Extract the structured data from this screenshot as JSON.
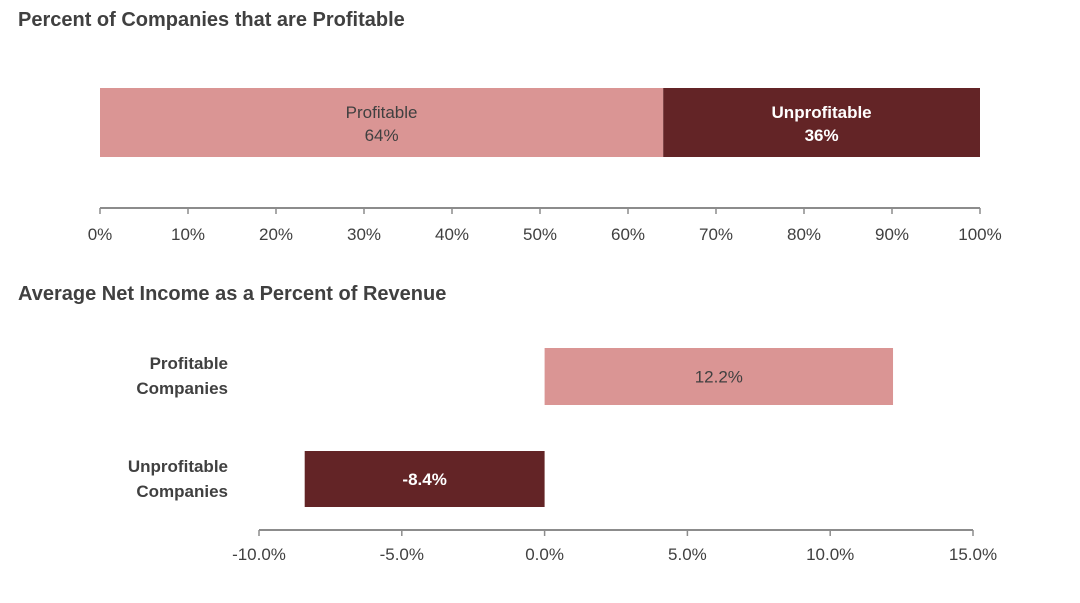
{
  "colors": {
    "profitable": "#DA9594",
    "unprofitable": "#632426",
    "text": "#404040",
    "axis": "#8c8c8c"
  },
  "chart_data": [
    {
      "type": "bar",
      "orientation": "horizontal-stacked",
      "title": "Percent of Companies that are Profitable",
      "series": [
        {
          "name": "Profitable",
          "values": [
            64
          ],
          "label": "64%"
        },
        {
          "name": "Unprofitable",
          "values": [
            36
          ],
          "label": "36%"
        }
      ],
      "xlim": [
        0,
        100
      ],
      "xticks": [
        "0%",
        "10%",
        "20%",
        "30%",
        "40%",
        "50%",
        "60%",
        "70%",
        "80%",
        "90%",
        "100%"
      ],
      "grid": false
    },
    {
      "type": "bar",
      "orientation": "horizontal",
      "title": "Average Net Income as a Percent of Revenue",
      "categories": [
        "Profitable Companies",
        "Unprofitable Companies"
      ],
      "category_lines": [
        [
          "Profitable",
          "Companies"
        ],
        [
          "Unprofitable",
          "Companies"
        ]
      ],
      "values": [
        12.2,
        -8.4
      ],
      "labels": [
        "12.2%",
        "-8.4%"
      ],
      "xlim": [
        -10,
        15
      ],
      "xticks": [
        "-10.0%",
        "-5.0%",
        "0.0%",
        "5.0%",
        "10.0%",
        "15.0%"
      ],
      "grid": false
    }
  ]
}
